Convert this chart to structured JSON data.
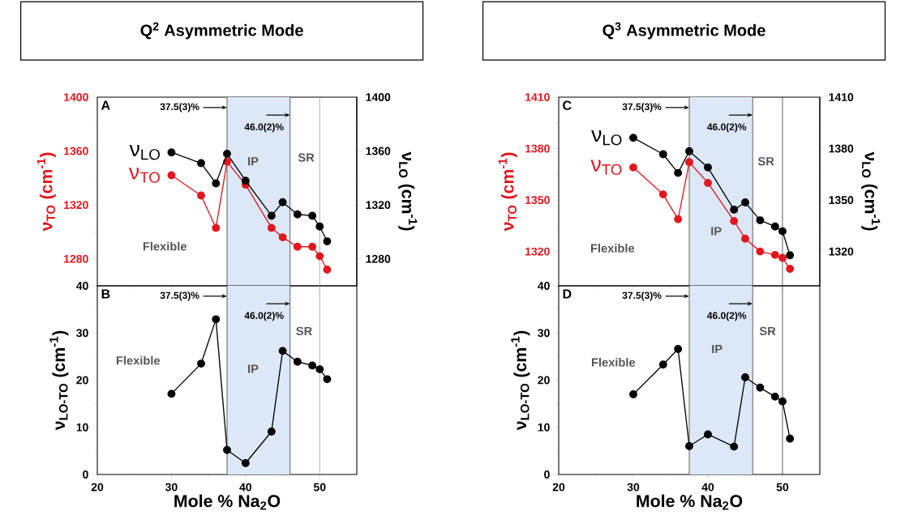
{
  "chart_data": [
    {
      "type": "line",
      "title": "Q$^{2}$ Asymmetric Mode",
      "ylabel": "ν$_{TO}$ (cm$^{-1}$)",
      "y2label": "ν$_{LO}$ (cm$^{-1}$)",
      "x": [
        30,
        34,
        36,
        37.5,
        40,
        43.5,
        45,
        47,
        49,
        50,
        51
      ],
      "xlim": [
        20,
        55
      ],
      "xticks": [
        20,
        30,
        40,
        50
      ],
      "ylim": [
        1260,
        1400
      ],
      "yticks": [
        1280,
        1320,
        1360,
        1400
      ],
      "y2lim": [
        1260,
        1400
      ],
      "y2ticks": [
        1280,
        1320,
        1360,
        1400
      ],
      "tick_labels": "y",
      "marker": "circle",
      "series": [
        {
          "name": "ν$_{LO}$",
          "color": "#000000",
          "axis": "y2",
          "values": [
            1359,
            1351,
            1336,
            1358,
            1338,
            1312,
            1322,
            1313,
            1312,
            1304,
            1293
          ]
        },
        {
          "name": "ν$_{TO}$",
          "color": "#e3161e",
          "axis": "y",
          "values": [
            1342,
            1327,
            1303,
            1352,
            1335,
            1303,
            1296,
            1289,
            1289,
            1282,
            1272
          ]
        }
      ],
      "bands": [
        {
          "axis": "x",
          "from": 37.5,
          "to": 46.0,
          "color": "#dce8f7"
        }
      ],
      "ref_lines": [
        {
          "axis": "x",
          "value": 37.5,
          "color": "#555555",
          "label": "37.5(3)%"
        },
        {
          "axis": "x",
          "value": 46.0,
          "color": "#555555",
          "label": "46.0(2)%"
        },
        {
          "axis": "x",
          "value": 50,
          "color": "#aaaaaa"
        }
      ],
      "annotations": [
        "A",
        "Flexible",
        "IP",
        "SR"
      ]
    },
    {
      "type": "line",
      "ylabel": "ν$_{LO-TO}$ (cm$^{-1}$)",
      "xlabel": "Mole % Na$_{2}$O",
      "x": [
        30,
        34,
        36,
        37.5,
        40,
        43.5,
        45,
        47,
        49,
        50,
        51
      ],
      "xlim": [
        20,
        55
      ],
      "xticks": [
        20,
        30,
        40,
        50
      ],
      "ylim": [
        0,
        40
      ],
      "yticks": [
        0,
        10,
        20,
        30,
        40
      ],
      "marker": "circle",
      "series": [
        {
          "color": "#000000",
          "values": [
            17.1,
            23.5,
            32.9,
            5.2,
            2.4,
            9.1,
            26.2,
            23.9,
            23.1,
            22.3,
            20.2
          ]
        }
      ],
      "bands": [
        {
          "axis": "x",
          "from": 37.5,
          "to": 46.0,
          "color": "#dce8f7"
        }
      ],
      "ref_lines": [
        {
          "axis": "x",
          "value": 37.5,
          "color": "#555555",
          "label": "37.5(3)%"
        },
        {
          "axis": "x",
          "value": 46.0,
          "color": "#555555",
          "label": "46.0(2)%"
        },
        {
          "axis": "x",
          "value": 50,
          "color": "#aaaaaa"
        }
      ],
      "annotations": [
        "B",
        "Flexible",
        "IP",
        "SR"
      ]
    },
    {
      "type": "line",
      "title": "Q$^{3}$ Asymmetric Mode",
      "ylabel": "ν$_{TO}$ (cm$^{-1}$)",
      "y2label": "ν$_{LO}$ (cm$^{-1}$)",
      "x": [
        30,
        34,
        36,
        37.5,
        40,
        43.5,
        45,
        47,
        49,
        50,
        51
      ],
      "xlim": [
        20,
        55
      ],
      "xticks": [
        20,
        30,
        40,
        50
      ],
      "ylim": [
        1300,
        1410
      ],
      "yticks": [
        1320,
        1350,
        1380,
        1410
      ],
      "y2lim": [
        1300,
        1410
      ],
      "y2ticks": [
        1320,
        1350,
        1380,
        1410
      ],
      "tick_labels": "y",
      "marker": "circle",
      "series": [
        {
          "name": "ν$_{LO}$",
          "color": "#000000",
          "axis": "y2",
          "values": [
            1386.3,
            1376.7,
            1365.8,
            1378.5,
            1369,
            1344.4,
            1348.6,
            1338.2,
            1334.6,
            1331.8,
            1317.8
          ]
        },
        {
          "name": "ν$_{TO}$",
          "color": "#e3161e",
          "axis": "y",
          "values": [
            1369,
            1353.3,
            1338.8,
            1372.1,
            1360,
            1337.8,
            1327.5,
            1320,
            1318,
            1316.3,
            1309.9
          ]
        }
      ],
      "bands": [
        {
          "axis": "x",
          "from": 37.5,
          "to": 46.0,
          "color": "#dce8f7"
        }
      ],
      "ref_lines": [
        {
          "axis": "x",
          "value": 37.5,
          "color": "#555555",
          "label": "37.5(3)%"
        },
        {
          "axis": "x",
          "value": 46.0,
          "color": "#555555",
          "label": "46.0(2)%"
        },
        {
          "axis": "x",
          "value": 50,
          "color": "#555555"
        }
      ],
      "annotations": [
        "C",
        "Flexible",
        "IP",
        "SR"
      ]
    },
    {
      "type": "line",
      "ylabel": "ν$_{LO-TO}$ (cm$^{-1}$)",
      "xlabel": "Mole % Na$_{2}$O",
      "x": [
        30,
        34,
        36,
        37.5,
        40,
        43.5,
        45,
        47,
        49,
        50,
        51
      ],
      "xlim": [
        20,
        55
      ],
      "xticks": [
        20,
        30,
        40,
        50
      ],
      "ylim": [
        0,
        40
      ],
      "yticks": [
        0,
        10,
        20,
        30,
        40
      ],
      "marker": "circle",
      "series": [
        {
          "color": "#000000",
          "values": [
            17.0,
            23.3,
            26.6,
            6.0,
            8.5,
            5.9,
            20.6,
            18.4,
            16.5,
            15.5,
            7.6
          ]
        }
      ],
      "bands": [
        {
          "axis": "x",
          "from": 37.5,
          "to": 46.0,
          "color": "#dce8f7"
        }
      ],
      "ref_lines": [
        {
          "axis": "x",
          "value": 37.5,
          "color": "#555555",
          "label": "37.5(3)%"
        },
        {
          "axis": "x",
          "value": 46.0,
          "color": "#555555",
          "label": "46.0(2)%"
        },
        {
          "axis": "x",
          "value": 50,
          "color": "#555555"
        }
      ],
      "annotations": [
        "D",
        "Flexible",
        "IP",
        "SR"
      ]
    }
  ]
}
